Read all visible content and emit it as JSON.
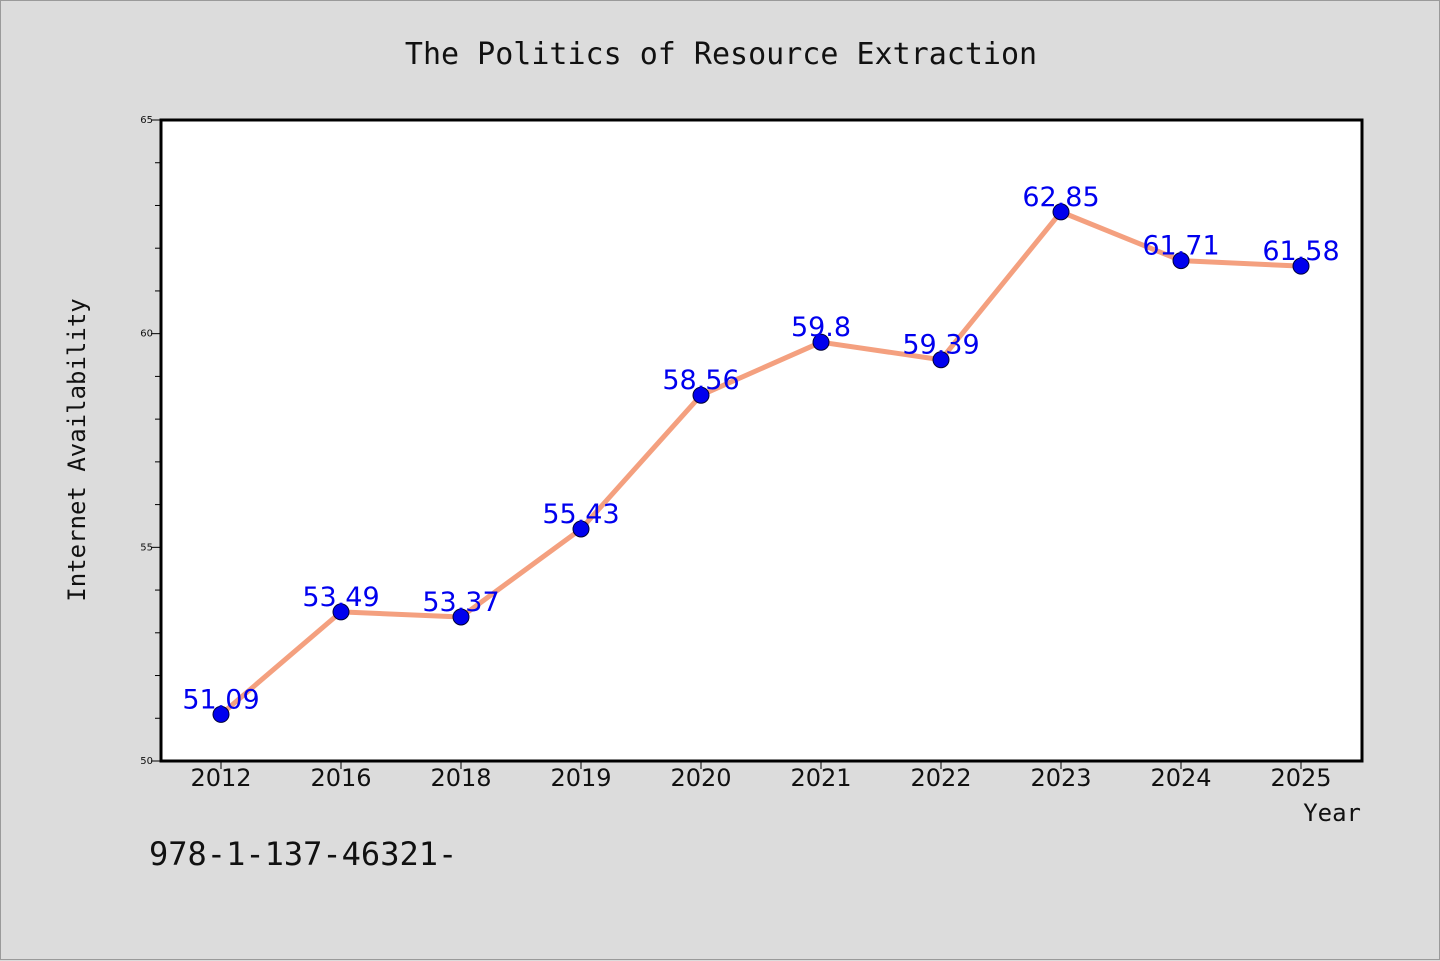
{
  "chart_data": {
    "type": "line",
    "title": "The Politics of Resource Extraction",
    "xlabel": "Year",
    "ylabel": "Internet Availability",
    "categories": [
      "2012",
      "2016",
      "2018",
      "2019",
      "2020",
      "2021",
      "2022",
      "2023",
      "2024",
      "2025"
    ],
    "series": [
      {
        "values": [
          51.09,
          53.49,
          53.37,
          55.43,
          58.56,
          59.8,
          59.39,
          62.85,
          61.71,
          61.58
        ],
        "data_labels": [
          "51.09",
          "53.49",
          "53.37",
          "55.43",
          "58.56",
          "59.8",
          "59.39",
          "62.85",
          "61.71",
          "61.58"
        ],
        "line_color": "#f4a07f",
        "marker_color": "#0000ee",
        "label_color": "#0000ee"
      }
    ],
    "ylim": [
      50,
      65
    ],
    "yticks": [
      "50",
      "55",
      "60",
      "65"
    ],
    "grid": false,
    "legend": "none"
  },
  "footnote": "978-1-137-46321-"
}
